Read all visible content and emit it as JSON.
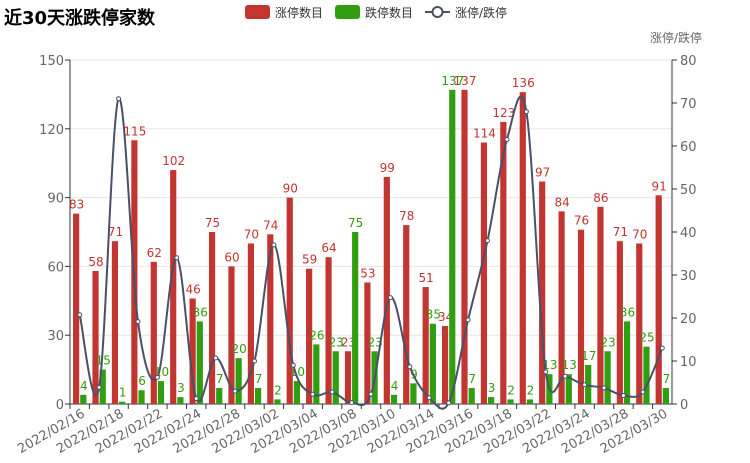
{
  "chart_data": {
    "type": "bar-line",
    "title": "近30天涨跌停家数",
    "y2label": "涨停/跌停",
    "categories": [
      "2022/02/16",
      null,
      "2022/02/18",
      null,
      "2022/02/22",
      null,
      "2022/02/24",
      null,
      "2022/02/28",
      null,
      "2022/03/02",
      null,
      "2022/03/04",
      null,
      "2022/03/08",
      null,
      "2022/03/10",
      null,
      "2022/03/14",
      null,
      "2022/03/16",
      null,
      "2022/03/18",
      null,
      "2022/03/22",
      null,
      "2022/03/24",
      null,
      "2022/03/28",
      null,
      "2022/03/30"
    ],
    "series": [
      {
        "name": "涨停数目",
        "color": "#c23531",
        "type": "bar",
        "values": [
          83,
          58,
          71,
          115,
          62,
          102,
          46,
          75,
          60,
          70,
          74,
          90,
          59,
          64,
          23,
          53,
          99,
          78,
          51,
          34,
          137,
          114,
          123,
          136,
          97,
          84,
          76,
          86,
          71,
          70,
          91
        ]
      },
      {
        "name": "跌停数目",
        "color": "#2f9e10",
        "type": "bar",
        "values": [
          4,
          15,
          1,
          6,
          10,
          3,
          36,
          7,
          20,
          7,
          2,
          10,
          26,
          23,
          75,
          23,
          4,
          9,
          35,
          137,
          7,
          3,
          2,
          2,
          13,
          13,
          17,
          23,
          36,
          25,
          7
        ]
      },
      {
        "name": "涨停/跌停",
        "color": "#4a5068",
        "type": "line",
        "axis": "y2",
        "values": [
          20.75,
          3.87,
          71,
          19.17,
          6.2,
          34,
          1.28,
          10.71,
          3,
          10,
          37,
          9,
          2.27,
          2.78,
          0.31,
          2.3,
          24.75,
          8.67,
          1.46,
          0.25,
          19.57,
          38,
          61.5,
          68,
          7.46,
          6.46,
          4.47,
          3.74,
          1.97,
          2.8,
          13
        ]
      }
    ],
    "ylim": [
      0,
      150
    ],
    "yticks": [
      0,
      30,
      60,
      90,
      120,
      150
    ],
    "y2lim": [
      0,
      80
    ],
    "y2ticks": [
      0,
      10,
      20,
      30,
      40,
      50,
      60,
      70,
      80
    ],
    "grid": true,
    "legend": "top"
  }
}
